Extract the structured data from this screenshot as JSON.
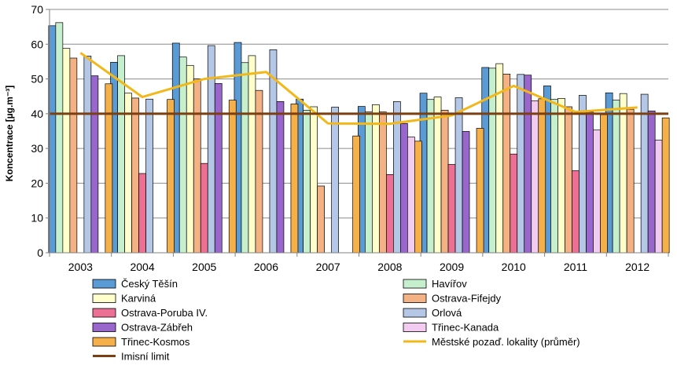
{
  "chart_data": {
    "type": "bar",
    "title": "",
    "xlabel": "",
    "ylabel": "Koncentrace [µg.m⁻³]",
    "ylim": [
      0,
      70
    ],
    "yticks": [
      0,
      10,
      20,
      30,
      40,
      50,
      60,
      70
    ],
    "grid": true,
    "legend_position": "bottom",
    "categories": [
      "2003",
      "2004",
      "2005",
      "2006",
      "2007",
      "2008",
      "2009",
      "2010",
      "2011",
      "2012"
    ],
    "series": [
      {
        "name": "Český Těšín",
        "color": "#5b9bd5",
        "values": [
          65.3,
          54.8,
          60.3,
          60.5,
          44.2,
          42.1,
          45.9,
          53.3,
          48.0,
          46.0
        ]
      },
      {
        "name": "Havířov",
        "color": "#c6efce",
        "values": [
          66.2,
          56.7,
          56.3,
          54.7,
          41.0,
          40.5,
          44.1,
          53.1,
          44.1,
          43.9
        ]
      },
      {
        "name": "Karviná",
        "color": "#ffffcc",
        "values": [
          58.8,
          45.9,
          53.9,
          56.7,
          42.0,
          42.6,
          44.8,
          54.4,
          44.4,
          45.8
        ]
      },
      {
        "name": "Ostrava-Fifejdy",
        "color": "#f4b183",
        "values": [
          56.0,
          44.5,
          50.0,
          46.7,
          19.2,
          40.5,
          41.0,
          51.4,
          42.0,
          41.3
        ]
      },
      {
        "name": "Ostrava-Poruba IV.",
        "color": "#ec7093",
        "values": [
          null,
          22.8,
          25.7,
          null,
          null,
          22.5,
          25.4,
          28.4,
          23.6,
          null
        ]
      },
      {
        "name": "Orlová",
        "color": "#b4c7e7",
        "values": [
          56.6,
          44.2,
          59.6,
          58.4,
          41.9,
          43.5,
          44.6,
          51.3,
          45.3,
          45.6
        ]
      },
      {
        "name": "Ostrava-Zábřeh",
        "color": "#9966cc",
        "values": [
          50.9,
          null,
          48.7,
          43.5,
          null,
          37.2,
          34.9,
          51.1,
          40.5,
          40.8
        ]
      },
      {
        "name": "Třinec-Kanada",
        "color": "#f2ccf0",
        "values": [
          null,
          null,
          null,
          null,
          null,
          33.3,
          null,
          43.7,
          35.3,
          32.4
        ]
      },
      {
        "name": "Třinec-Kosmos",
        "color": "#f5b04a",
        "values": [
          48.6,
          44.1,
          43.9,
          42.8,
          33.6,
          32.1,
          35.8,
          44.3,
          39.7,
          38.8
        ]
      }
    ],
    "lines": [
      {
        "name": "Městské pozaď. lokality (průměr)",
        "color": "#f2b81a",
        "values": [
          57.5,
          44.8,
          50.0,
          52.0,
          37.2,
          37.1,
          39.5,
          48.0,
          40.5,
          41.8
        ]
      },
      {
        "name": "Imisní limit",
        "color": "#7b3f12",
        "constant": 40
      }
    ]
  }
}
